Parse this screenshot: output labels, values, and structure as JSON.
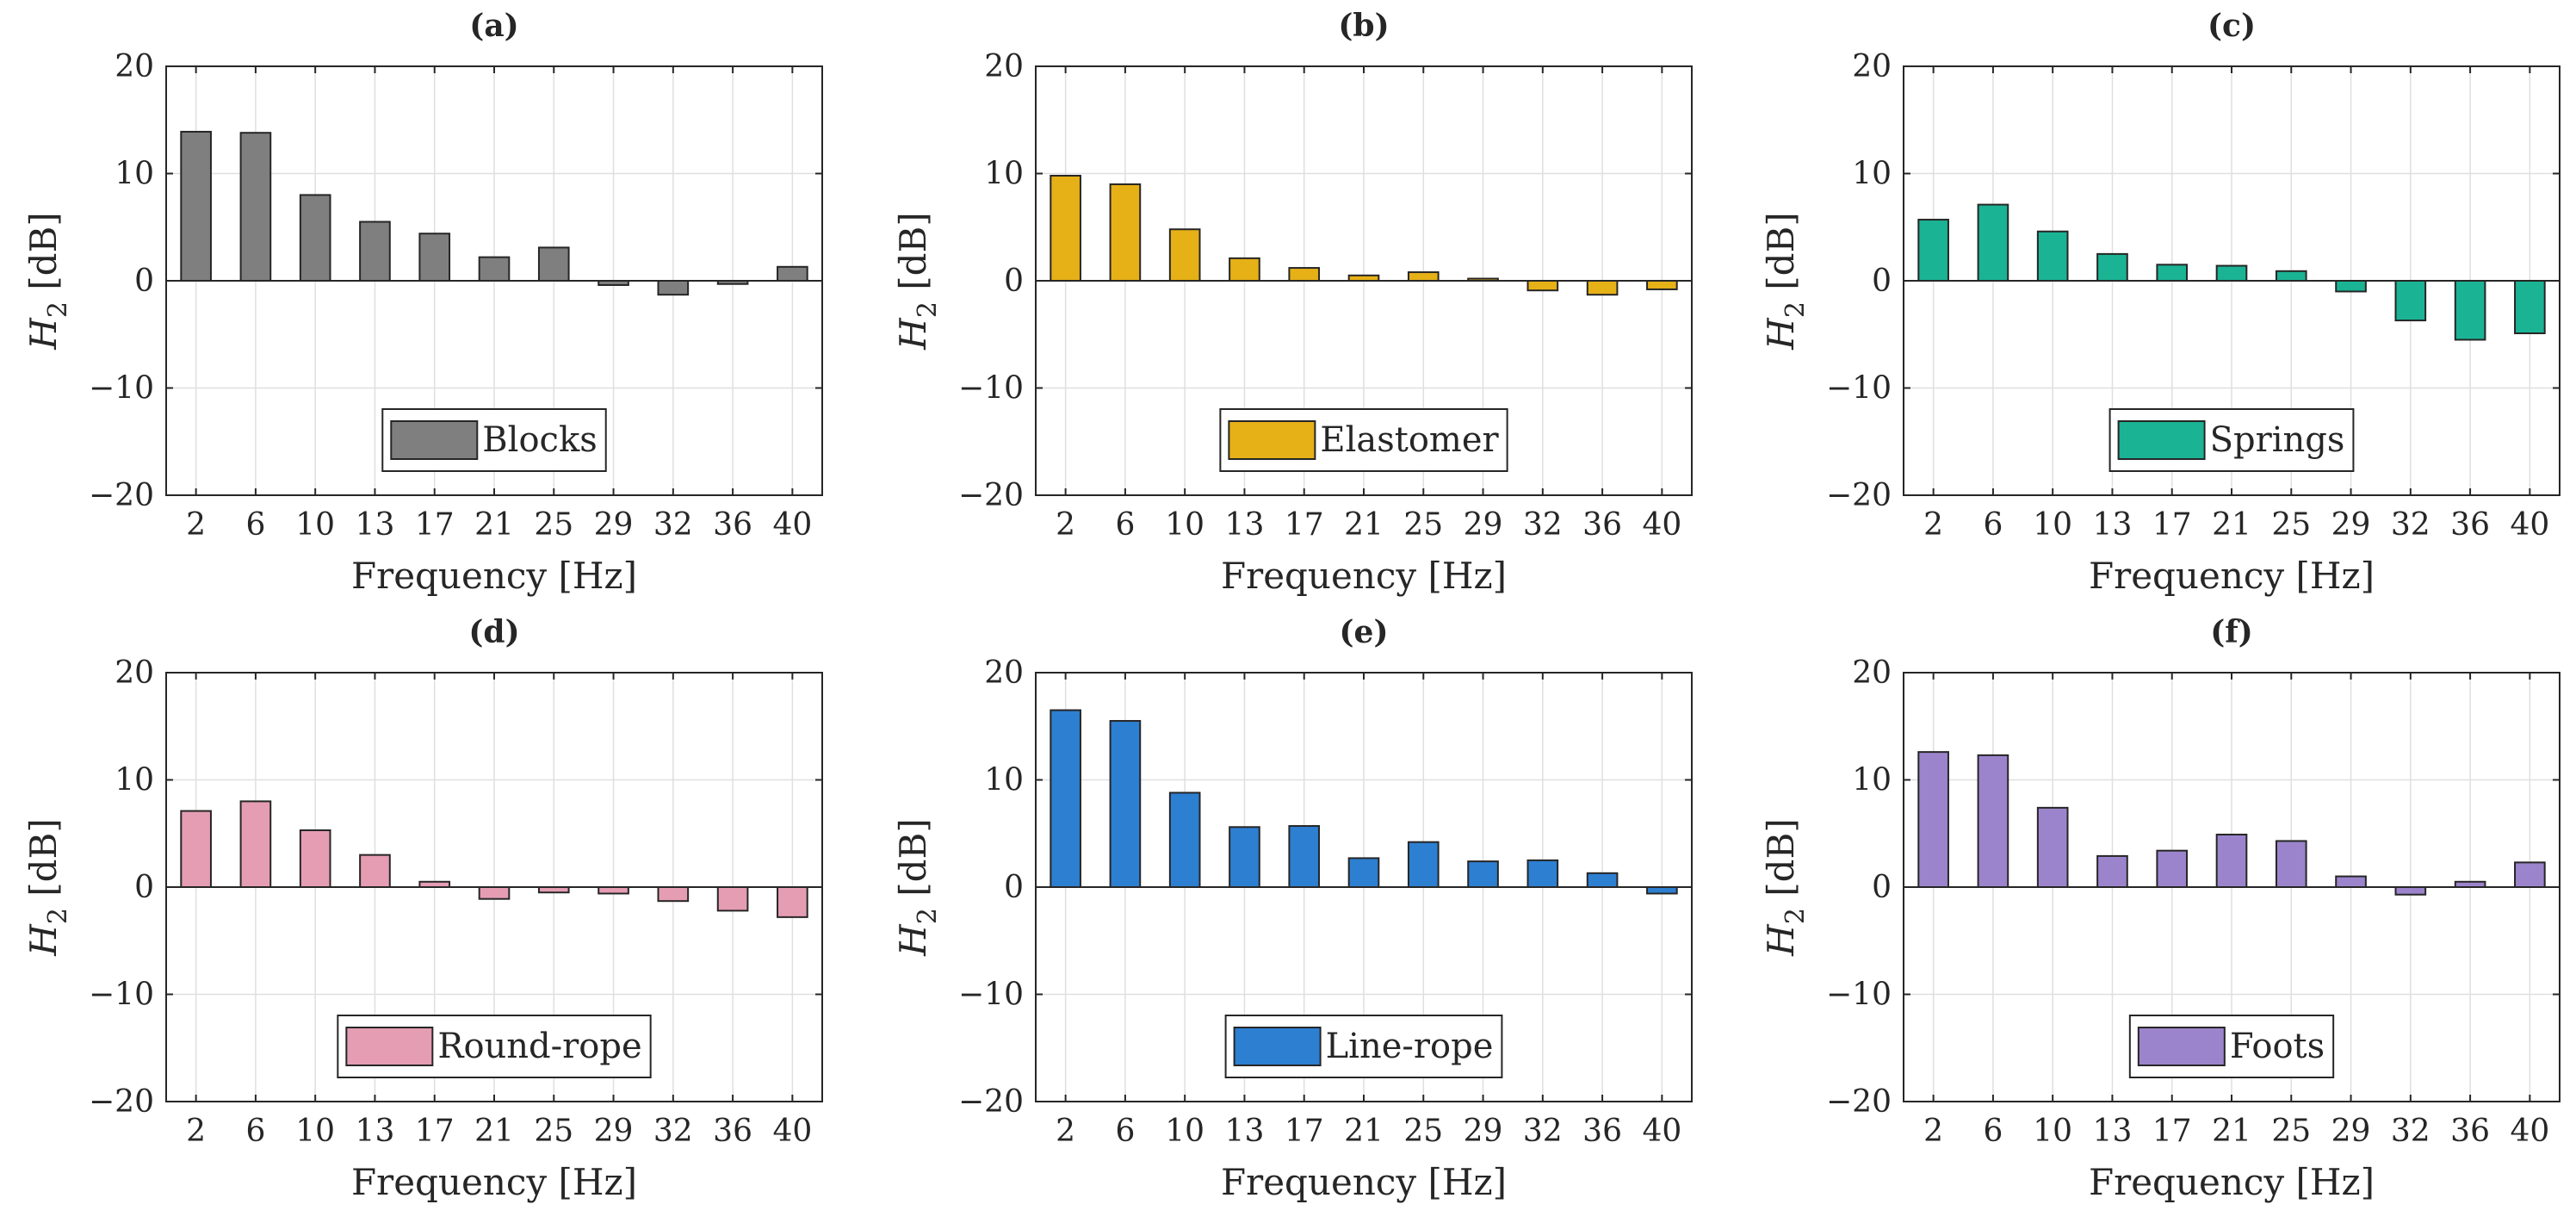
{
  "figure": {
    "colors": {
      "axis": "#262626",
      "grid": "#dfdfdf",
      "bar_edge": "#262626"
    }
  },
  "chart_data": [
    {
      "type": "bar",
      "panel": "(a)",
      "title": "(a)",
      "categories": [
        "2",
        "6",
        "10",
        "13",
        "17",
        "21",
        "25",
        "29",
        "32",
        "36",
        "40"
      ],
      "series": [
        {
          "name": "Blocks",
          "color": "#7f7f7f",
          "values": [
            13.9,
            13.8,
            8.0,
            5.5,
            4.4,
            2.2,
            3.1,
            -0.4,
            -1.3,
            -0.3,
            1.3
          ]
        }
      ],
      "legend": "Blocks",
      "xlabel": "Frequency [Hz]",
      "ylabel_main": "H",
      "ylabel_sub": "2",
      "ylabel_unit": " [dB]",
      "ylim": [
        -20,
        20
      ],
      "yticks": [
        "−20",
        "−10",
        "0",
        "10",
        "20"
      ],
      "grid": true,
      "legend_position": "bottom-center"
    },
    {
      "type": "bar",
      "panel": "(b)",
      "title": "(b)",
      "categories": [
        "2",
        "6",
        "10",
        "13",
        "17",
        "21",
        "25",
        "29",
        "32",
        "36",
        "40"
      ],
      "series": [
        {
          "name": "Elastomer",
          "color": "#e6b017",
          "values": [
            9.8,
            9.0,
            4.8,
            2.1,
            1.2,
            0.5,
            0.8,
            0.2,
            -0.9,
            -1.3,
            -0.8
          ]
        }
      ],
      "legend": "Elastomer",
      "xlabel": "Frequency [Hz]",
      "ylabel_main": "H",
      "ylabel_sub": "2",
      "ylabel_unit": " [dB]",
      "ylim": [
        -20,
        20
      ],
      "yticks": [
        "−20",
        "−10",
        "0",
        "10",
        "20"
      ],
      "grid": true,
      "legend_position": "bottom-center"
    },
    {
      "type": "bar",
      "panel": "(c)",
      "title": "(c)",
      "categories": [
        "2",
        "6",
        "10",
        "13",
        "17",
        "21",
        "25",
        "29",
        "32",
        "36",
        "40"
      ],
      "series": [
        {
          "name": "Springs",
          "color": "#1ab394",
          "values": [
            5.7,
            7.1,
            4.6,
            2.5,
            1.5,
            1.4,
            0.9,
            -1.0,
            -3.7,
            -5.5,
            -4.9
          ]
        }
      ],
      "legend": "Springs",
      "xlabel": "Frequency [Hz]",
      "ylabel_main": "H",
      "ylabel_sub": "2",
      "ylabel_unit": " [dB]",
      "ylim": [
        -20,
        20
      ],
      "yticks": [
        "−20",
        "−10",
        "0",
        "10",
        "20"
      ],
      "grid": true,
      "legend_position": "bottom-center"
    },
    {
      "type": "bar",
      "panel": "(d)",
      "title": "(d)",
      "categories": [
        "2",
        "6",
        "10",
        "13",
        "17",
        "21",
        "25",
        "29",
        "32",
        "36",
        "40"
      ],
      "series": [
        {
          "name": "Round-rope",
          "color": "#e59db4",
          "values": [
            7.1,
            8.0,
            5.3,
            3.0,
            0.5,
            -1.1,
            -0.5,
            -0.6,
            -1.3,
            -2.2,
            -2.8
          ]
        }
      ],
      "legend": "Round-rope",
      "xlabel": "Frequency [Hz]",
      "ylabel_main": "H",
      "ylabel_sub": "2",
      "ylabel_unit": " [dB]",
      "ylim": [
        -20,
        20
      ],
      "yticks": [
        "−20",
        "−10",
        "0",
        "10",
        "20"
      ],
      "grid": true,
      "legend_position": "bottom-center"
    },
    {
      "type": "bar",
      "panel": "(e)",
      "title": "(e)",
      "categories": [
        "2",
        "6",
        "10",
        "13",
        "17",
        "21",
        "25",
        "29",
        "32",
        "36",
        "40"
      ],
      "series": [
        {
          "name": "Line-rope",
          "color": "#2d7fd1",
          "values": [
            16.5,
            15.5,
            8.8,
            5.6,
            5.7,
            2.7,
            4.2,
            2.4,
            2.5,
            1.3,
            -0.6
          ]
        }
      ],
      "legend": "Line-rope",
      "xlabel": "Frequency [Hz]",
      "ylabel_main": "H",
      "ylabel_sub": "2",
      "ylabel_unit": " [dB]",
      "ylim": [
        -20,
        20
      ],
      "yticks": [
        "−20",
        "−10",
        "0",
        "10",
        "20"
      ],
      "grid": true,
      "legend_position": "bottom-center"
    },
    {
      "type": "bar",
      "panel": "(f)",
      "title": "(f)",
      "categories": [
        "2",
        "6",
        "10",
        "13",
        "17",
        "21",
        "25",
        "29",
        "32",
        "36",
        "40"
      ],
      "series": [
        {
          "name": "Foots",
          "color": "#9b84cc",
          "values": [
            12.6,
            12.3,
            7.4,
            2.9,
            3.4,
            4.9,
            4.3,
            1.0,
            -0.7,
            0.5,
            2.3
          ]
        }
      ],
      "legend": "Foots",
      "xlabel": "Frequency [Hz]",
      "ylabel_main": "H",
      "ylabel_sub": "2",
      "ylabel_unit": " [dB]",
      "ylim": [
        -20,
        20
      ],
      "yticks": [
        "−20",
        "−10",
        "0",
        "10",
        "20"
      ],
      "grid": true,
      "legend_position": "bottom-center"
    }
  ]
}
